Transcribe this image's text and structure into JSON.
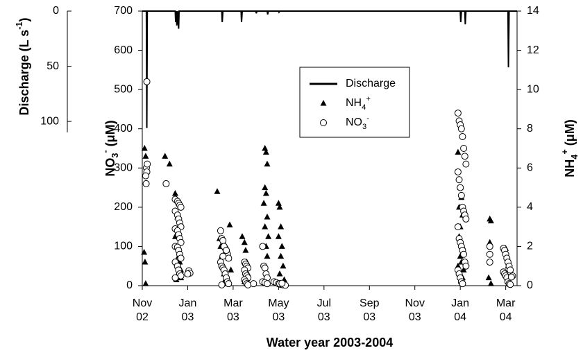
{
  "chart_data": {
    "type": "scatter",
    "x_label": "Water year 2003-2004",
    "y_label": "NO3- (μM)",
    "y2_label": "NH4+ (μM)",
    "discharge_label": "Discharge (L s-1)",
    "xlim": [
      0,
      16.5
    ],
    "xticks": [
      {
        "value": 0,
        "label": "Nov\n02"
      },
      {
        "value": 2,
        "label": "Jan\n03"
      },
      {
        "value": 4,
        "label": "Mar\n03"
      },
      {
        "value": 6,
        "label": "May\n03"
      },
      {
        "value": 8,
        "label": "Jul\n03"
      },
      {
        "value": 10,
        "label": "Sep\n03"
      },
      {
        "value": 12,
        "label": "Nov\n03"
      },
      {
        "value": 14,
        "label": "Jan\n04"
      },
      {
        "value": 16,
        "label": "Mar\n04"
      }
    ],
    "ylim": [
      0,
      700
    ],
    "yticks": [
      0,
      100,
      200,
      300,
      400,
      500,
      600,
      700
    ],
    "y2lim": [
      0,
      14
    ],
    "y2ticks": [
      0,
      2,
      4,
      6,
      8,
      10,
      12,
      14
    ],
    "dischargelim": [
      0,
      110
    ],
    "dischargeticks": [
      0,
      50,
      100
    ],
    "series": [
      {
        "name": "Discharge",
        "kind": "line",
        "axis": "discharge",
        "color": "#000000",
        "x": [
          0,
          0.18,
          0.2,
          0.22,
          1.45,
          1.47,
          1.5,
          1.52,
          1.55,
          1.6,
          1.62,
          3.5,
          3.52,
          3.55,
          4.35,
          4.37,
          4.4,
          5.0,
          5.02,
          5.05,
          5.5,
          5.52,
          5.55,
          6.0,
          6.02,
          6.05,
          14.0,
          14.02,
          14.05,
          14.2,
          14.22,
          14.25,
          16.1,
          16.12,
          16.15,
          16.5
        ],
        "values": [
          0,
          0,
          106,
          0,
          0,
          10,
          0,
          13,
          0,
          16,
          0,
          0,
          10,
          0,
          0,
          10,
          0,
          0,
          2,
          0,
          0,
          3,
          0,
          0,
          1,
          0,
          0,
          10,
          0,
          0,
          12,
          0,
          0,
          51,
          0,
          0
        ]
      },
      {
        "name": "NH4+",
        "kind": "triangle",
        "axis": "y2",
        "color": "#000000",
        "x": [
          0.1,
          0.15,
          0.08,
          0.12,
          0.15,
          1.0,
          1.2,
          1.45,
          1.5,
          1.55,
          1.6,
          1.45,
          1.5,
          1.6,
          1.65,
          1.55,
          1.7,
          1.6,
          1.7,
          1.5,
          3.3,
          3.4,
          3.45,
          3.5,
          3.55,
          3.6,
          3.65,
          3.7,
          3.75,
          3.8,
          3.85,
          3.9,
          4.4,
          4.5,
          4.55,
          4.6,
          4.65,
          4.5,
          5.4,
          5.45,
          5.5,
          5.4,
          5.45,
          5.35,
          5.5,
          5.4,
          5.55,
          5.45,
          5.5,
          5.4,
          5.5,
          5.45,
          6.0,
          6.05,
          6.1,
          6.0,
          6.15,
          6.1,
          6.2,
          6.05,
          6.25,
          6.0,
          13.9,
          14.0,
          14.05,
          13.95,
          14.1,
          14.0,
          13.95,
          14.1,
          14.0,
          14.05,
          13.9,
          14.15,
          14.0,
          14.1,
          14.05,
          15.3,
          15.35,
          15.3,
          15.25,
          15.35,
          16.0,
          16.05,
          16.1,
          16.0,
          16.1
        ],
        "values": [
          7.0,
          6.6,
          1.7,
          1.2,
          0.1,
          6.6,
          6.2,
          4.7,
          4.4,
          3.5,
          3.0,
          2.5,
          2.0,
          1.5,
          1.2,
          1.0,
          0.8,
          0.6,
          0.4,
          0.3,
          4.8,
          2.4,
          2.0,
          1.5,
          1.0,
          0.6,
          0.3,
          0.1,
          1.8,
          1.4,
          3.1,
          0.8,
          2.5,
          2.2,
          1.8,
          1.2,
          0.6,
          0.2,
          7.0,
          6.8,
          6.2,
          5.0,
          4.7,
          4.2,
          3.5,
          3.0,
          2.5,
          2.0,
          1.5,
          1.0,
          0.5,
          0.2,
          4.2,
          4.0,
          3.0,
          2.5,
          2.0,
          1.5,
          1.0,
          0.6,
          0.3,
          0.1,
          6.8,
          5.0,
          4.5,
          4.0,
          3.6,
          3.0,
          2.5,
          2.0,
          1.5,
          1.2,
          1.0,
          0.8,
          0.6,
          0.4,
          0.2,
          3.4,
          3.3,
          2.2,
          0.4,
          0.1,
          1.9,
          1.5,
          1.0,
          0.6,
          0.2
        ]
      },
      {
        "name": "NO3-",
        "kind": "circle",
        "axis": "y",
        "color": "#ffffff",
        "x": [
          0.2,
          0.18,
          0.2,
          0.15,
          0.22,
          0.17,
          1.05,
          1.45,
          1.55,
          1.6,
          1.65,
          1.7,
          1.45,
          1.55,
          1.6,
          1.65,
          1.7,
          1.45,
          1.55,
          1.6,
          1.65,
          1.7,
          1.45,
          1.55,
          1.6,
          1.65,
          1.7,
          1.45,
          1.55,
          1.6,
          1.65,
          1.7,
          1.45,
          2.05,
          2.1,
          2.0,
          3.45,
          3.5,
          3.55,
          3.6,
          3.65,
          3.7,
          3.75,
          3.8,
          3.45,
          3.5,
          3.55,
          3.6,
          3.65,
          3.7,
          3.75,
          3.8,
          3.5,
          3.6,
          3.7,
          3.55,
          4.5,
          4.55,
          4.6,
          4.65,
          4.5,
          4.55,
          4.6,
          4.65,
          4.5,
          4.55,
          4.6,
          4.65,
          4.9,
          5.3,
          5.35,
          5.4,
          5.45,
          5.5,
          5.3,
          5.4,
          5.5,
          5.8,
          5.9,
          6.0,
          6.1,
          6.2,
          6.3,
          6.05,
          6.15,
          13.9,
          13.95,
          14.0,
          14.05,
          14.1,
          14.15,
          14.2,
          14.25,
          13.9,
          13.95,
          14.0,
          14.05,
          14.1,
          14.15,
          14.2,
          14.25,
          13.9,
          13.95,
          14.0,
          14.05,
          14.1,
          14.15,
          14.2,
          14.25,
          13.9,
          13.95,
          14.0,
          14.05,
          14.1,
          15.3,
          15.3,
          15.3,
          15.9,
          15.95,
          16.0,
          16.05,
          16.1,
          16.15,
          16.2,
          15.9,
          15.95,
          16.0,
          16.05,
          16.1,
          16.15,
          16.2,
          16.3,
          16.25
        ],
        "values": [
          520,
          300,
          290,
          280,
          310,
          260,
          260,
          220,
          215,
          210,
          205,
          200,
          190,
          180,
          170,
          160,
          150,
          145,
          140,
          130,
          120,
          110,
          100,
          98,
          90,
          80,
          70,
          60,
          50,
          40,
          30,
          25,
          20,
          38,
          32,
          30,
          140,
          120,
          115,
          100,
          95,
          85,
          80,
          70,
          60,
          50,
          45,
          40,
          30,
          20,
          10,
          5,
          2,
          100,
          90,
          75,
          60,
          55,
          50,
          45,
          40,
          30,
          25,
          20,
          15,
          10,
          5,
          2,
          5,
          100,
          50,
          45,
          30,
          20,
          10,
          8,
          5,
          10,
          8,
          5,
          3,
          2,
          1,
          5,
          6,
          440,
          420,
          410,
          400,
          380,
          350,
          330,
          310,
          290,
          270,
          250,
          230,
          200,
          190,
          180,
          170,
          150,
          120,
          110,
          100,
          90,
          80,
          60,
          50,
          40,
          30,
          20,
          10,
          5,
          100,
          80,
          60,
          95,
          90,
          80,
          70,
          60,
          50,
          40,
          35,
          30,
          25,
          20,
          10,
          5,
          3,
          25,
          22
        ]
      }
    ]
  }
}
